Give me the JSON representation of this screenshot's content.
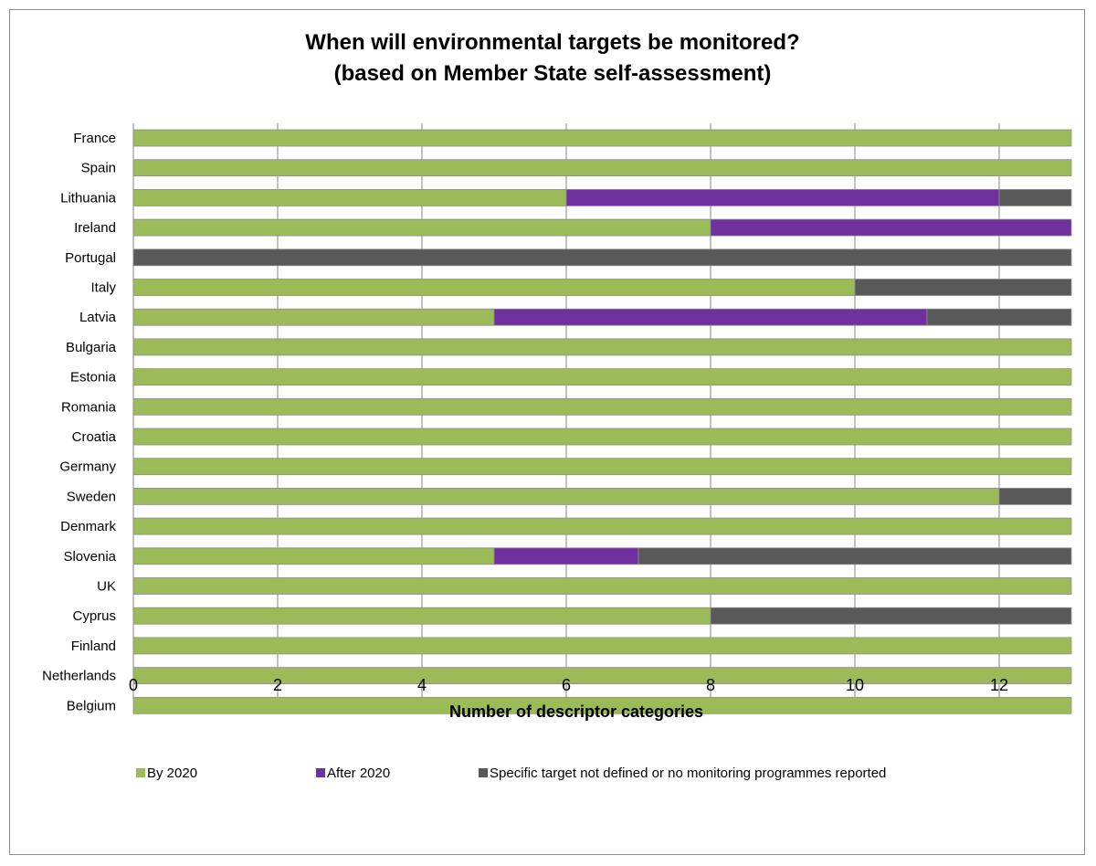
{
  "chart_data": {
    "type": "bar",
    "orientation": "horizontal",
    "stacked": true,
    "title": "When will environmental targets be monitored?",
    "subtitle": "(based on Member State  self-assessment)",
    "xlabel": "Number of descriptor categories",
    "ylabel": "",
    "xlim": [
      0,
      13
    ],
    "xticks": [
      0,
      2,
      4,
      6,
      8,
      10,
      12
    ],
    "grid": "vertical",
    "legend_position": "bottom",
    "categories": [
      "France",
      "Spain",
      "Lithuania",
      "Ireland",
      "Portugal",
      "Italy",
      "Latvia",
      "Bulgaria",
      "Estonia",
      "Romania",
      "Croatia",
      "Germany",
      "Sweden",
      "Denmark",
      "Slovenia",
      "UK",
      "Cyprus",
      "Finland",
      "Netherlands",
      "Belgium"
    ],
    "series": [
      {
        "name": "By 2020",
        "color": "#9bbb59",
        "values": [
          13,
          13,
          6,
          8,
          0,
          10,
          5,
          13,
          13,
          13,
          13,
          13,
          12,
          13,
          5,
          13,
          8,
          13,
          13,
          13
        ]
      },
      {
        "name": "After 2020",
        "color": "#7030a0",
        "values": [
          0,
          0,
          6,
          5,
          0,
          0,
          6,
          0,
          0,
          0,
          0,
          0,
          0,
          0,
          2,
          0,
          0,
          0,
          0,
          0
        ]
      },
      {
        "name": "Specific target not defined or no monitoring programmes reported",
        "color": "#595959",
        "values": [
          0,
          0,
          1,
          0,
          13,
          3,
          2,
          0,
          0,
          0,
          0,
          0,
          1,
          0,
          6,
          0,
          5,
          0,
          0,
          0
        ]
      }
    ]
  }
}
